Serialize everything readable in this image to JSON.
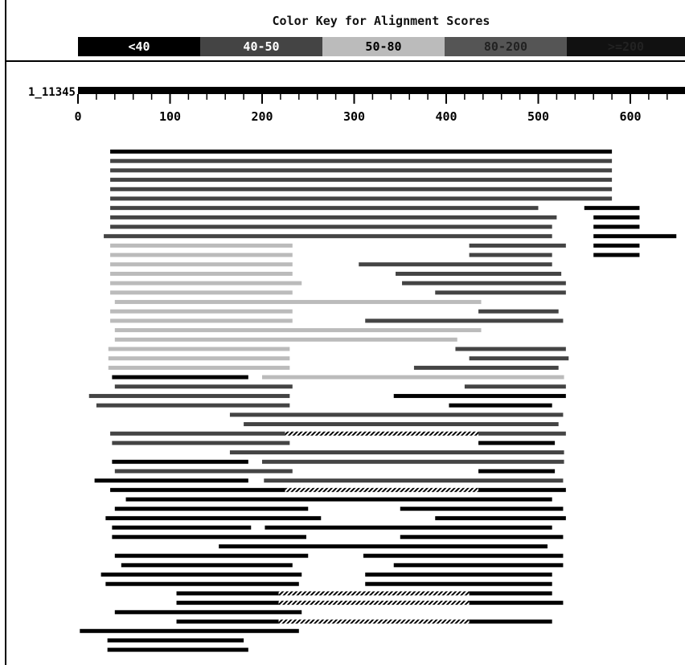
{
  "color_key": {
    "title": "Color Key for Alignment Scores",
    "bins": [
      {
        "label": "<40",
        "color": "#000000",
        "text_color": "#ffffff"
      },
      {
        "label": "40-50",
        "color": "#444444",
        "text_color": "#ffffff"
      },
      {
        "label": "50-80",
        "color": "#bbbbbb",
        "text_color": "#000000"
      },
      {
        "label": "80-200",
        "color": "#555555",
        "text_color": "#222222"
      },
      {
        "label": ">=200",
        "color": "#111111",
        "text_color": "#222222"
      }
    ]
  },
  "chart_data": {
    "type": "bar",
    "query": {
      "label": "1_11345",
      "start": 0,
      "end": 660
    },
    "xaxis": {
      "ticks": [
        0,
        100,
        200,
        300,
        400,
        500,
        600
      ],
      "minor_step": 20,
      "range": [
        0,
        660
      ]
    },
    "rows": [
      {
        "hits": [
          {
            "start": 35,
            "end": 580,
            "bin": 0
          }
        ]
      },
      {
        "hits": [
          {
            "start": 35,
            "end": 580,
            "bin": 1
          }
        ]
      },
      {
        "hits": [
          {
            "start": 35,
            "end": 580,
            "bin": 1
          }
        ]
      },
      {
        "hits": [
          {
            "start": 35,
            "end": 580,
            "bin": 1
          }
        ]
      },
      {
        "hits": [
          {
            "start": 35,
            "end": 580,
            "bin": 1
          }
        ]
      },
      {
        "hits": [
          {
            "start": 35,
            "end": 580,
            "bin": 1
          }
        ]
      },
      {
        "hits": [
          {
            "start": 35,
            "end": 500,
            "bin": 1
          },
          {
            "start": 550,
            "end": 610,
            "bin": 0
          }
        ]
      },
      {
        "hits": [
          {
            "start": 35,
            "end": 520,
            "bin": 1
          },
          {
            "start": 560,
            "end": 610,
            "bin": 0
          }
        ]
      },
      {
        "hits": [
          {
            "start": 35,
            "end": 515,
            "bin": 1
          },
          {
            "start": 560,
            "end": 610,
            "bin": 0
          }
        ]
      },
      {
        "hits": [
          {
            "start": 28,
            "end": 515,
            "bin": 1
          },
          {
            "start": 560,
            "end": 650,
            "bin": 0
          }
        ]
      },
      {
        "hits": [
          {
            "start": 35,
            "end": 233,
            "bin": 2
          },
          {
            "start": 425,
            "end": 530,
            "bin": 1
          },
          {
            "start": 560,
            "end": 610,
            "bin": 0
          }
        ]
      },
      {
        "hits": [
          {
            "start": 35,
            "end": 233,
            "bin": 2
          },
          {
            "start": 425,
            "end": 515,
            "bin": 1
          },
          {
            "start": 560,
            "end": 610,
            "bin": 0
          }
        ]
      },
      {
        "hits": [
          {
            "start": 35,
            "end": 233,
            "bin": 2
          },
          {
            "start": 305,
            "end": 515,
            "bin": 1
          }
        ]
      },
      {
        "hits": [
          {
            "start": 35,
            "end": 233,
            "bin": 2
          },
          {
            "start": 345,
            "end": 525,
            "bin": 1
          }
        ]
      },
      {
        "hits": [
          {
            "start": 35,
            "end": 243,
            "bin": 2
          },
          {
            "start": 352,
            "end": 530,
            "bin": 1
          }
        ]
      },
      {
        "hits": [
          {
            "start": 35,
            "end": 233,
            "bin": 2
          },
          {
            "start": 388,
            "end": 530,
            "bin": 1
          }
        ]
      },
      {
        "hits": [
          {
            "start": 40,
            "end": 438,
            "bin": 2
          }
        ]
      },
      {
        "hits": [
          {
            "start": 35,
            "end": 233,
            "bin": 2
          },
          {
            "start": 435,
            "end": 522,
            "bin": 1
          }
        ]
      },
      {
        "hits": [
          {
            "start": 35,
            "end": 233,
            "bin": 2
          },
          {
            "start": 312,
            "end": 527,
            "bin": 1
          }
        ]
      },
      {
        "hits": [
          {
            "start": 40,
            "end": 438,
            "bin": 2
          }
        ]
      },
      {
        "hits": [
          {
            "start": 40,
            "end": 412,
            "bin": 2
          }
        ]
      },
      {
        "hits": [
          {
            "start": 33,
            "end": 230,
            "bin": 2
          },
          {
            "start": 410,
            "end": 530,
            "bin": 1
          }
        ]
      },
      {
        "hits": [
          {
            "start": 33,
            "end": 230,
            "bin": 2
          },
          {
            "start": 425,
            "end": 533,
            "bin": 1
          }
        ]
      },
      {
        "hits": [
          {
            "start": 33,
            "end": 230,
            "bin": 2
          },
          {
            "start": 365,
            "end": 522,
            "bin": 1
          }
        ]
      },
      {
        "hits": [
          {
            "start": 37,
            "end": 185,
            "bin": 0
          },
          {
            "start": 200,
            "end": 528,
            "bin": 2
          }
        ]
      },
      {
        "hits": [
          {
            "start": 40,
            "end": 233,
            "bin": 1
          },
          {
            "start": 420,
            "end": 530,
            "bin": 1
          }
        ]
      },
      {
        "hits": [
          {
            "start": 12,
            "end": 230,
            "bin": 1
          },
          {
            "start": 343,
            "end": 530,
            "bin": 0
          }
        ]
      },
      {
        "hits": [
          {
            "start": 20,
            "end": 230,
            "bin": 1
          },
          {
            "start": 403,
            "end": 515,
            "bin": 0
          }
        ]
      },
      {
        "hits": [
          {
            "start": 165,
            "end": 527,
            "bin": 1
          }
        ]
      },
      {
        "hits": [
          {
            "start": 180,
            "end": 522,
            "bin": 1
          }
        ]
      },
      {
        "hits": [
          {
            "start": 35,
            "end": 225,
            "bin": 1
          },
          {
            "start": 225,
            "end": 435,
            "bin": 4
          },
          {
            "start": 435,
            "end": 530,
            "bin": 1
          }
        ]
      },
      {
        "hits": [
          {
            "start": 37,
            "end": 230,
            "bin": 1
          },
          {
            "start": 435,
            "end": 518,
            "bin": 0
          }
        ]
      },
      {
        "hits": [
          {
            "start": 165,
            "end": 528,
            "bin": 1
          }
        ]
      },
      {
        "hits": [
          {
            "start": 37,
            "end": 185,
            "bin": 0
          },
          {
            "start": 200,
            "end": 528,
            "bin": 1
          }
        ]
      },
      {
        "hits": [
          {
            "start": 40,
            "end": 233,
            "bin": 1
          },
          {
            "start": 435,
            "end": 518,
            "bin": 0
          }
        ]
      },
      {
        "hits": [
          {
            "start": 18,
            "end": 185,
            "bin": 0
          },
          {
            "start": 202,
            "end": 527,
            "bin": 1
          }
        ]
      },
      {
        "hits": [
          {
            "start": 35,
            "end": 225,
            "bin": 0
          },
          {
            "start": 225,
            "end": 435,
            "bin": 4
          },
          {
            "start": 435,
            "end": 530,
            "bin": 0
          }
        ]
      },
      {
        "hits": [
          {
            "start": 52,
            "end": 515,
            "bin": 0
          }
        ]
      },
      {
        "hits": [
          {
            "start": 40,
            "end": 250,
            "bin": 0
          },
          {
            "start": 350,
            "end": 527,
            "bin": 0
          }
        ]
      },
      {
        "hits": [
          {
            "start": 30,
            "end": 264,
            "bin": 0
          },
          {
            "start": 388,
            "end": 530,
            "bin": 0
          }
        ]
      },
      {
        "hits": [
          {
            "start": 37,
            "end": 188,
            "bin": 0
          },
          {
            "start": 203,
            "end": 515,
            "bin": 0
          }
        ]
      },
      {
        "hits": [
          {
            "start": 37,
            "end": 248,
            "bin": 0
          },
          {
            "start": 350,
            "end": 527,
            "bin": 0
          }
        ]
      },
      {
        "hits": [
          {
            "start": 153,
            "end": 510,
            "bin": 0
          }
        ]
      },
      {
        "hits": [
          {
            "start": 40,
            "end": 250,
            "bin": 0
          },
          {
            "start": 310,
            "end": 527,
            "bin": 0
          }
        ]
      },
      {
        "hits": [
          {
            "start": 47,
            "end": 233,
            "bin": 0
          },
          {
            "start": 343,
            "end": 527,
            "bin": 0
          }
        ]
      },
      {
        "hits": [
          {
            "start": 25,
            "end": 243,
            "bin": 0
          },
          {
            "start": 312,
            "end": 515,
            "bin": 0
          }
        ]
      },
      {
        "hits": [
          {
            "start": 30,
            "end": 240,
            "bin": 0
          },
          {
            "start": 312,
            "end": 515,
            "bin": 0
          }
        ]
      },
      {
        "hits": [
          {
            "start": 107,
            "end": 218,
            "bin": 0
          },
          {
            "start": 218,
            "end": 425,
            "bin": 4
          },
          {
            "start": 425,
            "end": 515,
            "bin": 0
          }
        ]
      },
      {
        "hits": [
          {
            "start": 107,
            "end": 218,
            "bin": 0
          },
          {
            "start": 218,
            "end": 425,
            "bin": 4
          },
          {
            "start": 425,
            "end": 527,
            "bin": 0
          }
        ]
      },
      {
        "hits": [
          {
            "start": 40,
            "end": 243,
            "bin": 0
          }
        ]
      },
      {
        "hits": [
          {
            "start": 107,
            "end": 218,
            "bin": 0
          },
          {
            "start": 218,
            "end": 425,
            "bin": 4
          },
          {
            "start": 425,
            "end": 515,
            "bin": 0
          }
        ]
      },
      {
        "hits": [
          {
            "start": 2,
            "end": 240,
            "bin": 0
          }
        ]
      },
      {
        "hits": [
          {
            "start": 32,
            "end": 180,
            "bin": 0
          }
        ]
      },
      {
        "hits": [
          {
            "start": 32,
            "end": 185,
            "bin": 0
          }
        ]
      }
    ]
  }
}
